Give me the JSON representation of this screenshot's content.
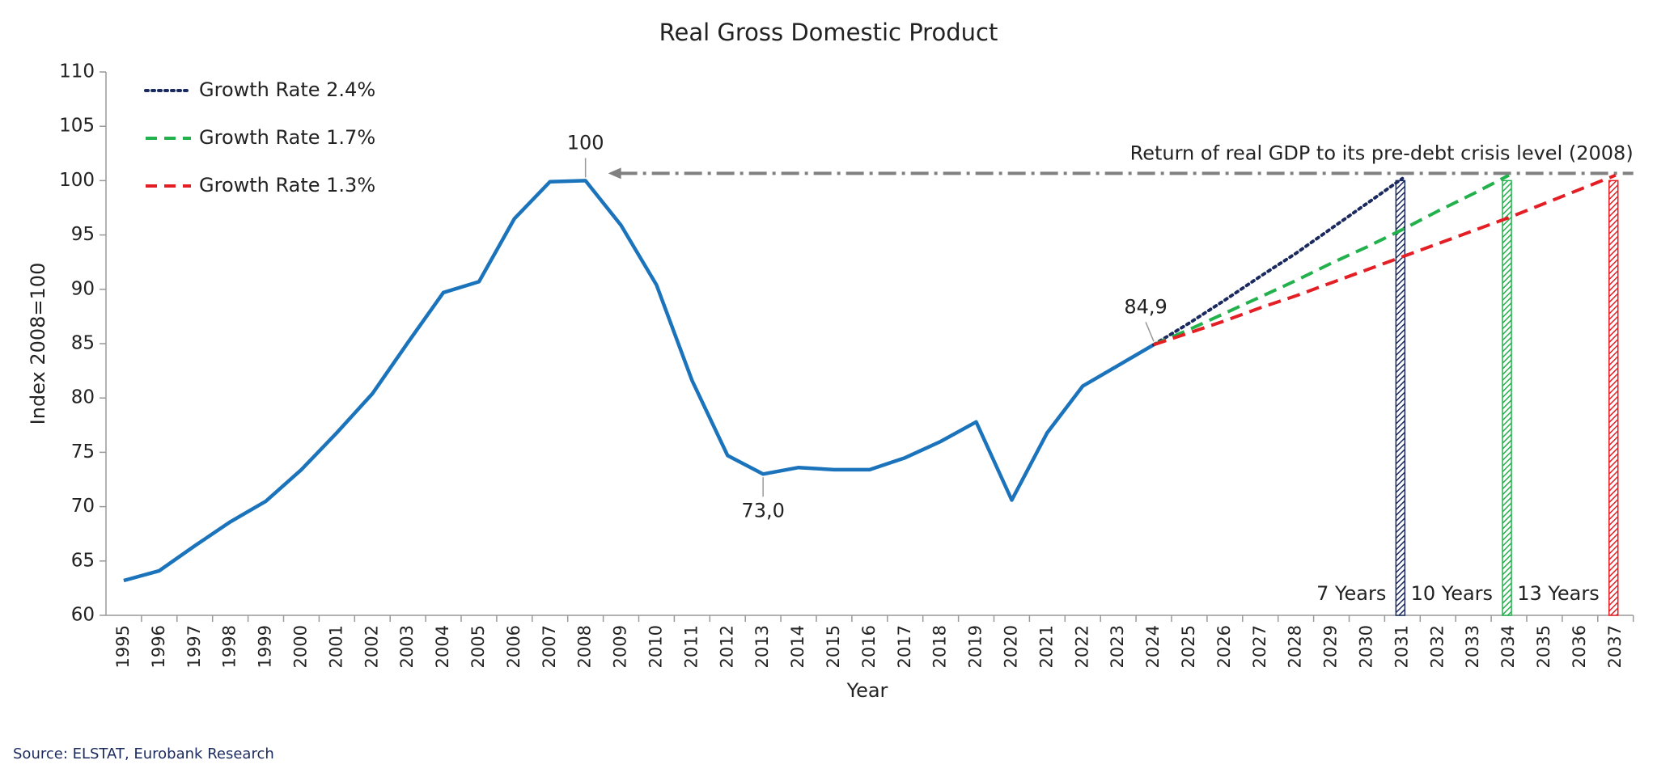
{
  "chart_data": {
    "type": "line",
    "title": "Real Gross Domestic Product",
    "x_label": "Year",
    "y_label": "Index 2008=100",
    "source": "Source: ELSTAT, Eurobank Research",
    "categories": [
      "1995",
      "1996",
      "1997",
      "1998",
      "1999",
      "2000",
      "2001",
      "2002",
      "2003",
      "2004",
      "2005",
      "2006",
      "2007",
      "2008",
      "2009",
      "2010",
      "2011",
      "2012",
      "2013",
      "2014",
      "2015",
      "2016",
      "2017",
      "2018",
      "2019",
      "2020",
      "2021",
      "2022",
      "2023",
      "2024",
      "2025",
      "2026",
      "2027",
      "2028",
      "2029",
      "2030",
      "2031",
      "2032",
      "2033",
      "2034",
      "2035",
      "2036",
      "2037"
    ],
    "ylim": [
      60,
      110
    ],
    "yticks": [
      60,
      65,
      70,
      75,
      80,
      85,
      90,
      95,
      100,
      105,
      110
    ],
    "legend": "upper left",
    "series": [
      {
        "color": "#1b74bb",
        "style": "solid",
        "values": [
          63.2,
          64.1,
          66.4,
          68.6,
          70.5,
          73.4,
          76.8,
          80.4,
          85.1,
          89.7,
          90.7,
          96.5,
          99.9,
          100,
          95.9,
          90.4,
          81.6,
          74.7,
          73.0,
          73.6,
          73.4,
          73.4,
          74.5,
          76.0,
          77.8,
          70.6,
          76.8,
          81.1,
          83.0,
          84.9,
          null,
          null,
          null,
          null,
          null,
          null,
          null,
          null,
          null,
          null,
          null,
          null,
          null
        ],
        "value_labels": [
          null,
          null,
          null,
          null,
          null,
          null,
          null,
          null,
          null,
          null,
          null,
          null,
          null,
          "100",
          null,
          null,
          null,
          null,
          "73,0",
          null,
          null,
          null,
          null,
          null,
          null,
          null,
          null,
          null,
          null,
          "84,9",
          null,
          null,
          null,
          null,
          null,
          null,
          null,
          null,
          null,
          null,
          null,
          null,
          null
        ]
      },
      {
        "name": "Growth Rate 2.4%",
        "color": "#1b2a5e",
        "style": "dotted",
        "values": [
          null,
          null,
          null,
          null,
          null,
          null,
          null,
          null,
          null,
          null,
          null,
          null,
          null,
          null,
          null,
          null,
          null,
          null,
          null,
          null,
          null,
          null,
          null,
          null,
          null,
          null,
          null,
          null,
          null,
          84.9,
          86.9,
          89.0,
          91.2,
          93.3,
          95.6,
          97.9,
          100.2,
          null,
          null,
          null,
          null,
          null,
          null
        ]
      },
      {
        "name": "Growth Rate 1.7%",
        "color": "#22b14c",
        "style": "dashed",
        "values": [
          null,
          null,
          null,
          null,
          null,
          null,
          null,
          null,
          null,
          null,
          null,
          null,
          null,
          null,
          null,
          null,
          null,
          null,
          null,
          null,
          null,
          null,
          null,
          null,
          null,
          null,
          null,
          null,
          null,
          84.9,
          86.3,
          87.8,
          89.3,
          90.8,
          92.4,
          93.9,
          95.5,
          97.2,
          98.8,
          100.5,
          null,
          null,
          null
        ]
      },
      {
        "name": "Growth Rate 1.3%",
        "color": "#e31e24",
        "style": "dashed",
        "values": [
          null,
          null,
          null,
          null,
          null,
          null,
          null,
          null,
          null,
          null,
          null,
          null,
          null,
          null,
          null,
          null,
          null,
          null,
          null,
          null,
          null,
          null,
          null,
          null,
          null,
          null,
          null,
          null,
          null,
          84.9,
          86.0,
          87.1,
          88.3,
          89.4,
          90.6,
          91.8,
          93.0,
          94.2,
          95.4,
          96.6,
          97.9,
          99.2,
          100.5
        ]
      }
    ],
    "reference_line": {
      "value": 100,
      "label": "Return of real GDP to its pre-debt crisis level (2008)",
      "color": "#808080"
    },
    "milestones": [
      {
        "category": "2031",
        "value": 100,
        "label": "7 Years",
        "color": "#1b2a5e"
      },
      {
        "category": "2034",
        "value": 100,
        "label": "10 Years",
        "color": "#22b14c"
      },
      {
        "category": "2037",
        "value": 100,
        "label": "13 Years",
        "color": "#e31e24"
      }
    ]
  }
}
